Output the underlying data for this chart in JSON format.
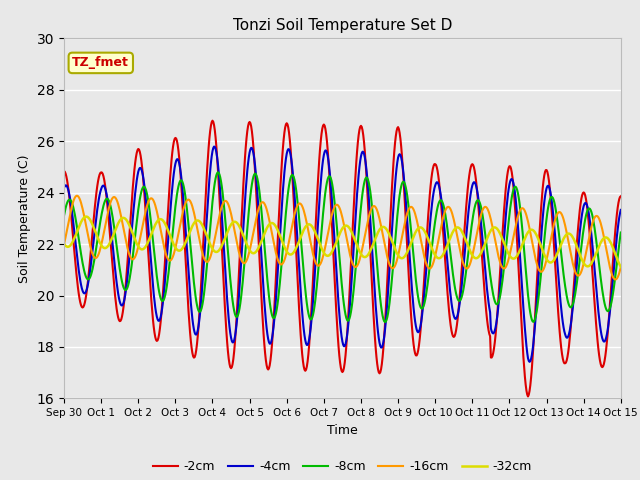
{
  "title": "Tonzi Soil Temperature Set D",
  "xlabel": "Time",
  "ylabel": "Soil Temperature (C)",
  "ylim": [
    16,
    30
  ],
  "yticks": [
    16,
    18,
    20,
    22,
    24,
    26,
    28,
    30
  ],
  "legend_labels": [
    "-2cm",
    "-4cm",
    "-8cm",
    "-16cm",
    "-32cm"
  ],
  "legend_colors": [
    "#dd0000",
    "#0000cc",
    "#00bb00",
    "#ff9900",
    "#dddd00"
  ],
  "line_widths": [
    1.5,
    1.5,
    1.5,
    1.5,
    1.8
  ],
  "annotation_text": "TZ_fmet",
  "annotation_box_color": "#ffffcc",
  "annotation_border_color": "#aaaa00",
  "annotation_text_color": "#cc0000",
  "background_color": "#e8e8e8",
  "plot_bg_color": "#e8e8e8",
  "xtick_labels": [
    "Sep 30",
    "Oct 1",
    "Oct 2",
    "Oct 3",
    "Oct 4",
    "Oct 5",
    "Oct 6",
    "Oct 7",
    "Oct 8",
    "Oct 9",
    "Oct 10",
    "Oct 11",
    "Oct 12",
    "Oct 13",
    "Oct 14",
    "Oct 15"
  ],
  "figsize": [
    6.4,
    4.8
  ],
  "dpi": 100
}
